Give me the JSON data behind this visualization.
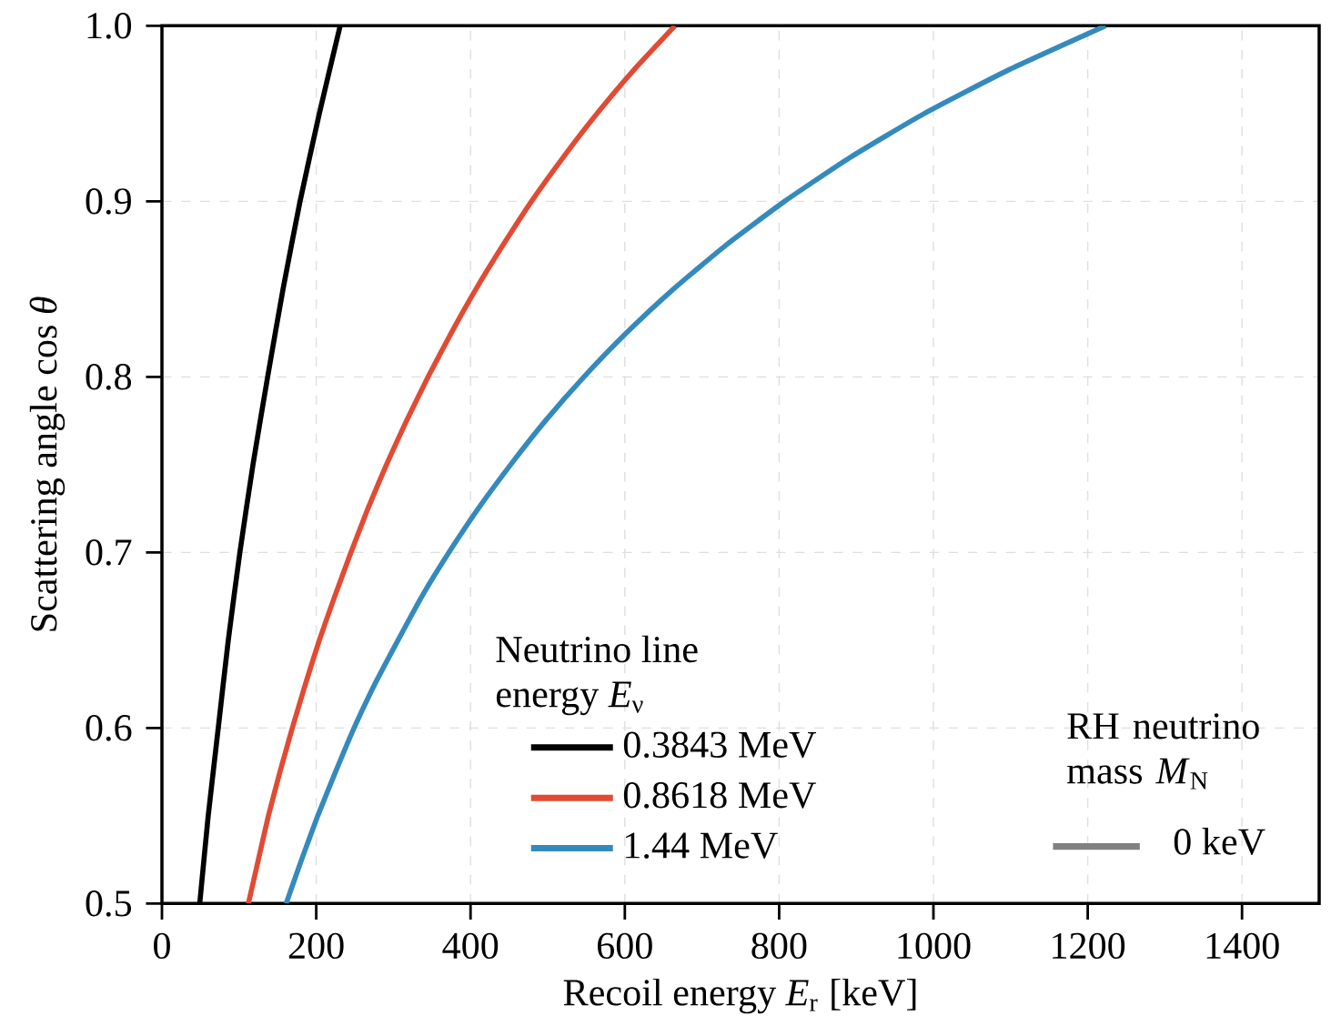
{
  "chart_data": {
    "type": "line",
    "xlabel": "Recoil energy *E*$_{r}$ [keV]",
    "ylabel": "Scattering angle  cos *θ*",
    "legend_title": "Neutrino line energy *E*$_{ν}$",
    "xlim": [
      0,
      1500
    ],
    "ylim": [
      0.5,
      1.0
    ],
    "xticks": [
      0,
      200,
      400,
      600,
      800,
      1000,
      1200,
      1400
    ],
    "yticks": [
      0.5,
      0.6,
      0.7,
      0.8,
      0.9,
      {
        "value": 1.0,
        "label": "1.0"
      }
    ],
    "grid": true,
    "legend": "bottom",
    "line_style": "solid",
    "marker": "none",
    "series": [
      {
        "name": "0.3843 MeV",
        "color": "#000000",
        "x": [
          49,
          60,
          73,
          86,
          101,
          118,
          137,
          157,
          179,
          204,
          231
        ],
        "values": [
          0.5,
          0.55,
          0.6,
          0.65,
          0.7,
          0.75,
          0.8,
          0.85,
          0.9,
          0.95,
          1.0
        ]
      },
      {
        "name": "0.8618 MeV",
        "color": "#e24a33",
        "x": [
          112,
          125,
          138,
          153,
          169,
          186,
          204,
          224,
          245,
          267,
          291,
          317,
          345,
          375,
          407,
          442,
          479,
          520,
          564,
          612,
          665
        ],
        "values": [
          0.5,
          0.525,
          0.55,
          0.575,
          0.6,
          0.625,
          0.65,
          0.675,
          0.7,
          0.725,
          0.75,
          0.775,
          0.8,
          0.825,
          0.85,
          0.875,
          0.9,
          0.925,
          0.95,
          0.975,
          1.0
        ]
      },
      {
        "name": "1.44 MeV",
        "color": "#348abd",
        "x": [
          161,
          181,
          202,
          225,
          249,
          276,
          306,
          337,
          372,
          410,
          452,
          497,
          547,
          602,
          663,
          731,
          807,
          892,
          988,
          1098,
          1223
        ],
        "values": [
          0.5,
          0.525,
          0.55,
          0.575,
          0.6,
          0.625,
          0.65,
          0.675,
          0.7,
          0.725,
          0.75,
          0.775,
          0.8,
          0.825,
          0.85,
          0.875,
          0.9,
          0.925,
          0.95,
          0.975,
          1.0
        ]
      }
    ],
    "annotations": [
      "RH neutrino mass *M*$_{N}$",
      "0 keV"
    ]
  }
}
